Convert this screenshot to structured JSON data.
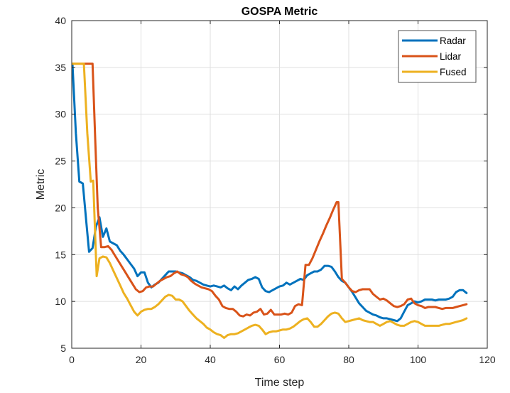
{
  "chart_data": {
    "type": "line",
    "title": "GOSPA Metric",
    "xlabel": "Time step",
    "ylabel": "Metric",
    "xlim": [
      0,
      120
    ],
    "ylim": [
      5,
      40
    ],
    "xticks": [
      0,
      20,
      40,
      60,
      80,
      100,
      120
    ],
    "yticks": [
      5,
      10,
      15,
      20,
      25,
      30,
      35,
      40
    ],
    "grid": true,
    "legend_position": "top-right",
    "series": [
      {
        "name": "Radar",
        "color": "#0072BD",
        "x": [
          0.2,
          1.2,
          2.2,
          3.2,
          4.2,
          5.0,
          6.0,
          7.0,
          8.0,
          9.0,
          10.0,
          11.0,
          12.0,
          13.0,
          14.0,
          15.0,
          16.0,
          17.0,
          18.0,
          19.0,
          20.0,
          21.0,
          22.0,
          23.0,
          24.0,
          25.0,
          26.0,
          27.0,
          28.0,
          29.0,
          30.0,
          31.0,
          32.0,
          33.0,
          34.0,
          35.0,
          36.0,
          37.0,
          38.0,
          39.0,
          40.0,
          41.0,
          42.0,
          43.0,
          44.0,
          45.0,
          46.0,
          47.0,
          48.0,
          49.0,
          50.0,
          51.0,
          52.0,
          53.0,
          54.0,
          55.0,
          56.0,
          57.0,
          58.0,
          59.0,
          60.0,
          61.0,
          62.0,
          63.0,
          64.0,
          65.0,
          66.0,
          67.0,
          68.0,
          69.0,
          70.0,
          71.0,
          72.0,
          73.0,
          74.0,
          75.0,
          76.0,
          77.0,
          78.0,
          79.0,
          80.0,
          81.0,
          82.0,
          83.0,
          84.0,
          85.0,
          86.0,
          87.0,
          88.0,
          89.0,
          90.0,
          91.0,
          92.0,
          93.0,
          94.0,
          95.0,
          96.0,
          97.0,
          98.0,
          99.0,
          100.0,
          101.0,
          102.0,
          103.0,
          104.0,
          105.0,
          106.0,
          107.0,
          108.0,
          109.0,
          110.0,
          111.0,
          112.0,
          113.0,
          114.0
        ],
        "y": [
          35.4,
          28.0,
          22.8,
          22.6,
          18.5,
          15.3,
          15.7,
          18.0,
          19.0,
          16.9,
          17.8,
          16.4,
          16.2,
          16.0,
          15.4,
          15.0,
          14.5,
          14.0,
          13.5,
          12.7,
          13.1,
          13.1,
          12.0,
          11.5,
          11.8,
          12.0,
          12.4,
          12.8,
          13.2,
          13.2,
          13.2,
          13.1,
          13.0,
          12.8,
          12.6,
          12.3,
          12.2,
          12.0,
          11.8,
          11.7,
          11.6,
          11.7,
          11.6,
          11.5,
          11.7,
          11.4,
          11.2,
          11.6,
          11.3,
          11.7,
          12.0,
          12.3,
          12.4,
          12.6,
          12.4,
          11.5,
          11.1,
          11.0,
          11.2,
          11.4,
          11.6,
          11.7,
          12.0,
          11.8,
          12.0,
          12.2,
          12.4,
          12.3,
          12.8,
          13.0,
          13.2,
          13.2,
          13.4,
          13.8,
          13.8,
          13.7,
          13.2,
          12.6,
          12.2,
          12.0,
          11.5,
          11.0,
          10.4,
          9.8,
          9.4,
          9.0,
          8.8,
          8.6,
          8.5,
          8.3,
          8.2,
          8.2,
          8.1,
          8.0,
          7.9,
          8.2,
          8.9,
          9.6,
          9.8,
          10.0,
          9.9,
          10.0,
          10.2,
          10.2,
          10.2,
          10.1,
          10.2,
          10.2,
          10.2,
          10.3,
          10.5,
          11.0,
          11.2,
          11.2,
          10.9
        ],
        "label": "Radar"
      },
      {
        "name": "Lidar",
        "color": "#D95319",
        "x": [
          0.2,
          6.0,
          6.8,
          7.5,
          8.5,
          9.5,
          10.5,
          11.5,
          12.5,
          13.5,
          14.5,
          15.5,
          16.5,
          17.5,
          18.5,
          19.5,
          20.5,
          21.5,
          22.5,
          23.5,
          24.5,
          25.5,
          26.5,
          27.5,
          28.5,
          29.5,
          30.5,
          31.5,
          32.5,
          33.5,
          34.5,
          35.5,
          36.5,
          37.5,
          38.5,
          39.5,
          40.5,
          41.5,
          42.5,
          43.5,
          44.5,
          45.5,
          46.5,
          47.5,
          48.5,
          49.5,
          50.5,
          51.5,
          52.5,
          53.5,
          54.5,
          55.5,
          56.5,
          57.5,
          58.5,
          59.5,
          60.5,
          61.5,
          62.5,
          63.5,
          64.5,
          65.5,
          66.5,
          67.5,
          68.5,
          69.5,
          70.5,
          71.5,
          72.5,
          73.5,
          74.5,
          75.5,
          76.5,
          77.0,
          78.0,
          79.0,
          80.0,
          81.0,
          82.0,
          83.0,
          84.0,
          85.0,
          86.0,
          87.0,
          88.0,
          89.0,
          90.0,
          91.0,
          92.0,
          93.0,
          94.0,
          95.0,
          96.0,
          97.0,
          98.0,
          99.0,
          100.0,
          101.0,
          102.0,
          103.0,
          104.0,
          105.0,
          106.0,
          107.0,
          108.0,
          109.0,
          110.0,
          111.0,
          112.0,
          113.0,
          114.0
        ],
        "y": [
          35.4,
          35.4,
          27.0,
          20.0,
          15.8,
          15.8,
          15.9,
          15.5,
          14.9,
          14.3,
          13.7,
          13.1,
          12.5,
          11.9,
          11.3,
          11.0,
          11.1,
          11.5,
          11.6,
          11.6,
          11.9,
          12.2,
          12.4,
          12.6,
          12.7,
          13.0,
          13.2,
          12.9,
          12.8,
          12.6,
          12.2,
          11.9,
          11.7,
          11.5,
          11.4,
          11.3,
          11.1,
          10.6,
          10.2,
          9.5,
          9.3,
          9.2,
          9.2,
          8.9,
          8.5,
          8.4,
          8.6,
          8.5,
          8.8,
          8.9,
          9.2,
          8.6,
          8.7,
          9.1,
          8.6,
          8.6,
          8.6,
          8.7,
          8.6,
          8.8,
          9.5,
          9.7,
          9.6,
          13.9,
          13.9,
          14.6,
          15.5,
          16.4,
          17.2,
          18.1,
          18.9,
          19.8,
          20.6,
          20.6,
          12.4,
          12.0,
          11.5,
          11.1,
          11.0,
          11.2,
          11.3,
          11.3,
          11.3,
          10.8,
          10.5,
          10.2,
          10.3,
          10.1,
          9.8,
          9.5,
          9.4,
          9.5,
          9.7,
          10.2,
          10.3,
          9.8,
          9.6,
          9.5,
          9.3,
          9.4,
          9.4,
          9.4,
          9.3,
          9.2,
          9.3,
          9.3,
          9.3,
          9.4,
          9.5,
          9.6,
          9.7
        ],
        "label": "Lidar"
      },
      {
        "name": "Fused",
        "color": "#EDB120",
        "x": [
          0.2,
          3.5,
          4.5,
          5.5,
          6.2,
          7.2,
          8.0,
          9.0,
          10.0,
          11.0,
          12.0,
          13.0,
          14.0,
          15.0,
          16.0,
          17.0,
          18.0,
          19.0,
          20.0,
          21.0,
          22.0,
          23.0,
          24.0,
          25.0,
          26.0,
          27.0,
          28.0,
          29.0,
          30.0,
          31.0,
          32.0,
          33.0,
          34.0,
          35.0,
          36.0,
          37.0,
          38.0,
          39.0,
          40.0,
          41.0,
          42.0,
          43.0,
          44.0,
          45.0,
          46.0,
          47.0,
          48.0,
          49.0,
          50.0,
          51.0,
          52.0,
          53.0,
          54.0,
          55.0,
          56.0,
          57.0,
          58.0,
          59.0,
          60.0,
          61.0,
          62.0,
          63.0,
          64.0,
          65.0,
          66.0,
          67.0,
          68.0,
          69.0,
          70.0,
          71.0,
          72.0,
          73.0,
          74.0,
          75.0,
          76.0,
          77.0,
          78.0,
          79.0,
          80.0,
          81.0,
          82.0,
          83.0,
          84.0,
          85.0,
          86.0,
          87.0,
          88.0,
          89.0,
          90.0,
          91.0,
          92.0,
          93.0,
          94.0,
          95.0,
          96.0,
          97.0,
          98.0,
          99.0,
          100.0,
          101.0,
          102.0,
          103.0,
          104.0,
          105.0,
          106.0,
          107.0,
          108.0,
          109.0,
          110.0,
          111.0,
          112.0,
          113.0,
          114.0
        ],
        "y": [
          35.4,
          35.4,
          28.0,
          22.8,
          22.9,
          12.7,
          14.6,
          14.8,
          14.7,
          14.1,
          13.3,
          12.5,
          11.7,
          10.9,
          10.3,
          9.6,
          8.9,
          8.5,
          8.9,
          9.1,
          9.2,
          9.2,
          9.4,
          9.7,
          10.1,
          10.5,
          10.7,
          10.6,
          10.2,
          10.2,
          10.0,
          9.5,
          9.0,
          8.6,
          8.2,
          7.9,
          7.6,
          7.2,
          7.0,
          6.7,
          6.5,
          6.4,
          6.1,
          6.4,
          6.5,
          6.5,
          6.6,
          6.8,
          7.0,
          7.2,
          7.4,
          7.5,
          7.4,
          7.0,
          6.5,
          6.7,
          6.8,
          6.8,
          6.9,
          7.0,
          7.0,
          7.1,
          7.3,
          7.6,
          7.9,
          8.1,
          8.2,
          7.8,
          7.3,
          7.3,
          7.6,
          8.0,
          8.4,
          8.7,
          8.8,
          8.7,
          8.2,
          7.8,
          7.9,
          8.0,
          8.1,
          8.2,
          8.0,
          7.9,
          7.8,
          7.8,
          7.6,
          7.4,
          7.6,
          7.8,
          7.9,
          7.7,
          7.5,
          7.4,
          7.4,
          7.6,
          7.8,
          7.9,
          7.8,
          7.6,
          7.4,
          7.4,
          7.4,
          7.4,
          7.4,
          7.5,
          7.6,
          7.6,
          7.7,
          7.8,
          7.9,
          8.0,
          8.2
        ],
        "label": "Fused"
      }
    ]
  }
}
